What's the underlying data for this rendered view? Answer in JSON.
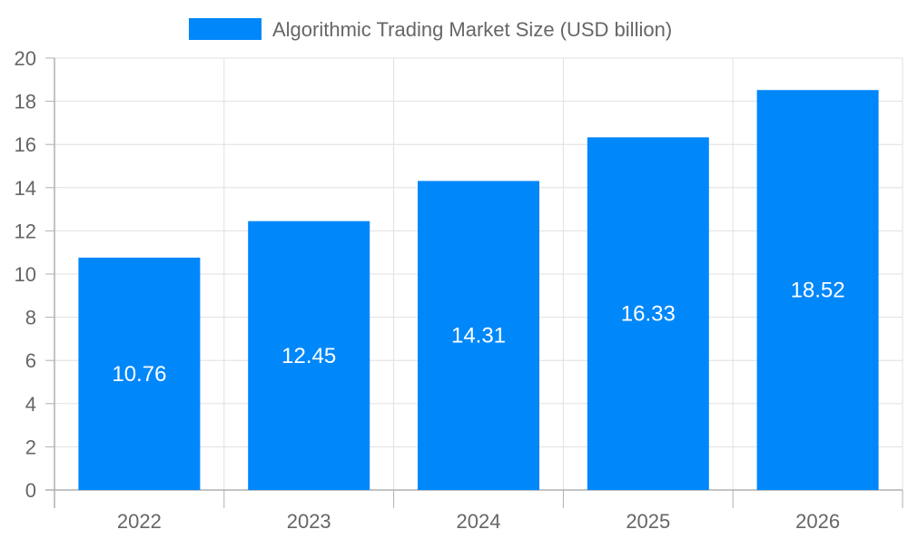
{
  "chart_data": {
    "type": "bar",
    "categories": [
      "2022",
      "2023",
      "2024",
      "2025",
      "2026"
    ],
    "series": [
      {
        "name": "Algorithmic Trading Market Size (USD billion)",
        "values": [
          10.76,
          12.45,
          14.31,
          16.33,
          18.52
        ],
        "data_labels": [
          "10.76",
          "12.45",
          "14.31",
          "16.33",
          "18.52"
        ]
      }
    ],
    "ylim": [
      0,
      20
    ],
    "yticks": [
      "0",
      "2",
      "4",
      "6",
      "8",
      "10",
      "12",
      "14",
      "16",
      "18",
      "20"
    ],
    "grid": true,
    "legend_position": "top-center"
  },
  "colors": {
    "bar": "#0087fa",
    "grid": "#e0e0e0",
    "axis": "#b0b0b0",
    "tick_text": "#666666",
    "data_label": "#ffffff",
    "legend_text": "#666666"
  }
}
